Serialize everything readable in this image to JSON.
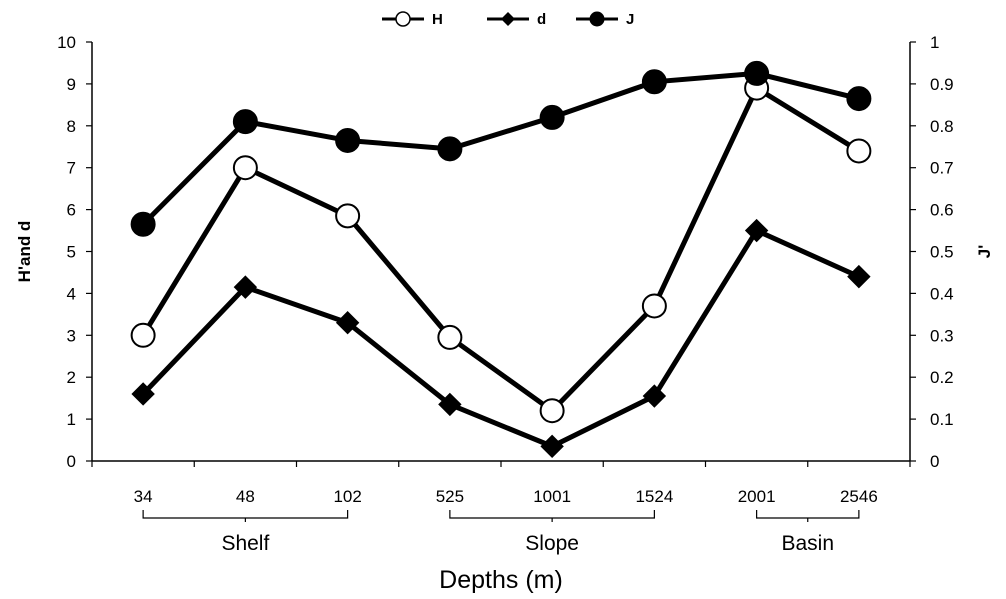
{
  "chart_data": {
    "type": "line",
    "title": "",
    "xlabel": "Depths (m)",
    "ylabel_left": "H'and d",
    "ylabel_right": "J'",
    "categories": [
      "34",
      "48",
      "102",
      "525",
      "1001",
      "1524",
      "2001",
      "2546"
    ],
    "ylim_left": [
      0,
      10
    ],
    "ylim_right": [
      0,
      1
    ],
    "yticks_left": [
      "0",
      "1",
      "2",
      "3",
      "4",
      "5",
      "6",
      "7",
      "8",
      "9",
      "10"
    ],
    "yticks_right": [
      "0",
      "0.1",
      "0.2",
      "0.3",
      "0.4",
      "0.5",
      "0.6",
      "0.7",
      "0.8",
      "0.9",
      "1"
    ],
    "grid": false,
    "legend": "top",
    "series": [
      {
        "name": "H",
        "axis": "left",
        "marker": "open-circle",
        "values": [
          3.0,
          7.0,
          5.85,
          2.95,
          1.2,
          3.7,
          8.9,
          7.4
        ]
      },
      {
        "name": "d",
        "axis": "left",
        "marker": "filled-diamond",
        "values": [
          1.6,
          4.15,
          3.3,
          1.35,
          0.35,
          1.55,
          5.5,
          4.4
        ]
      },
      {
        "name": "J",
        "axis": "right",
        "marker": "filled-circle",
        "values": [
          0.565,
          0.81,
          0.765,
          0.745,
          0.82,
          0.905,
          0.925,
          0.865
        ]
      }
    ],
    "groups": [
      {
        "label": "Shelf",
        "from": 0,
        "to": 2
      },
      {
        "label": "Slope",
        "from": 3,
        "to": 5
      },
      {
        "label": "Basin",
        "from": 6,
        "to": 7
      }
    ]
  }
}
